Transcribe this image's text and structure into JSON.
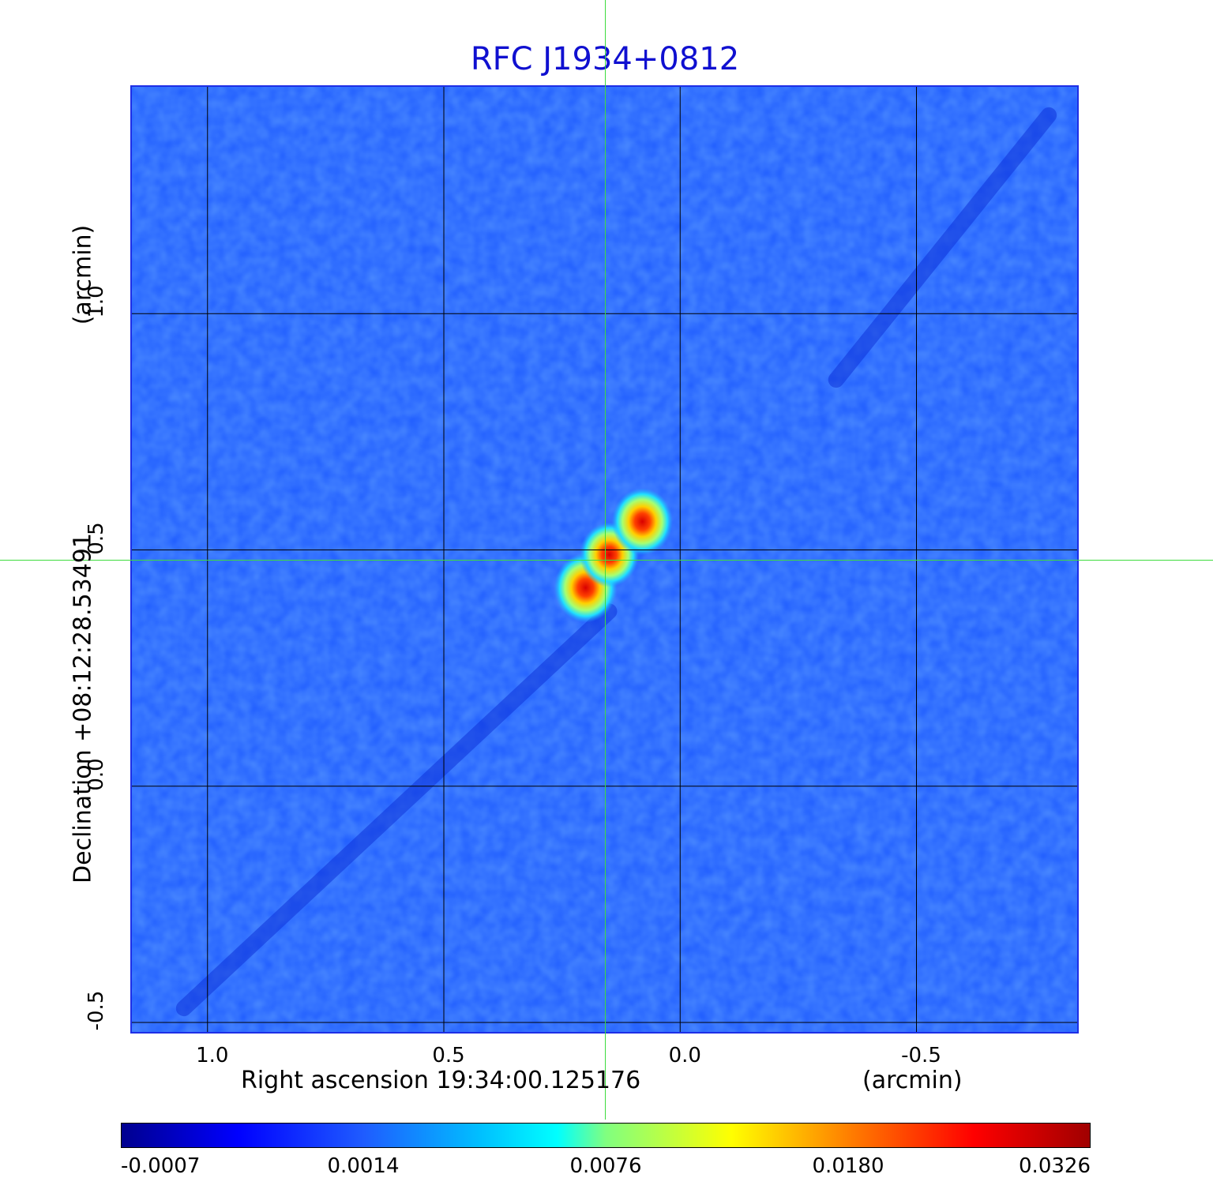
{
  "chart_data": {
    "type": "heatmap",
    "title": "RFC J1934+0812",
    "xlabel": "Right ascension  19:34:00.125176",
    "xunit": "(arcmin)",
    "ylabel": "Declination  +08:12:28.53491",
    "yunit": "(arcmin)",
    "x_reversed": true,
    "xlim": [
      1.16,
      -0.84
    ],
    "ylim": [
      -0.52,
      1.48
    ],
    "x_ticks": [
      1.0,
      0.5,
      0.0,
      -0.5
    ],
    "x_tick_labels": [
      "1.0",
      "0.5",
      "0.0",
      "-0.5"
    ],
    "y_ticks": [
      -0.5,
      0.0,
      0.5,
      1.0
    ],
    "y_tick_labels": [
      "-0.5",
      "0.0",
      "0.5",
      "1.0"
    ],
    "grid": true,
    "colormap": "jet",
    "colorbar_ticks": [
      "-0.0007",
      "0.0014",
      "0.0076",
      "0.0180",
      "0.0326"
    ],
    "colorbar_range": [
      -0.0007,
      0.0326
    ],
    "crosshair": {
      "x": 0.16,
      "y": 0.48
    },
    "sources": [
      {
        "x": 0.2,
        "y": 0.42,
        "peak": 0.0326
      },
      {
        "x": 0.15,
        "y": 0.49,
        "peak": 0.024
      },
      {
        "x": 0.08,
        "y": 0.56,
        "peak": 0.028
      }
    ]
  },
  "colors": {
    "title": "#1010d0",
    "background_map": "#1f5cff",
    "grid": "#000000",
    "crosshair": "#3ddc3d"
  }
}
